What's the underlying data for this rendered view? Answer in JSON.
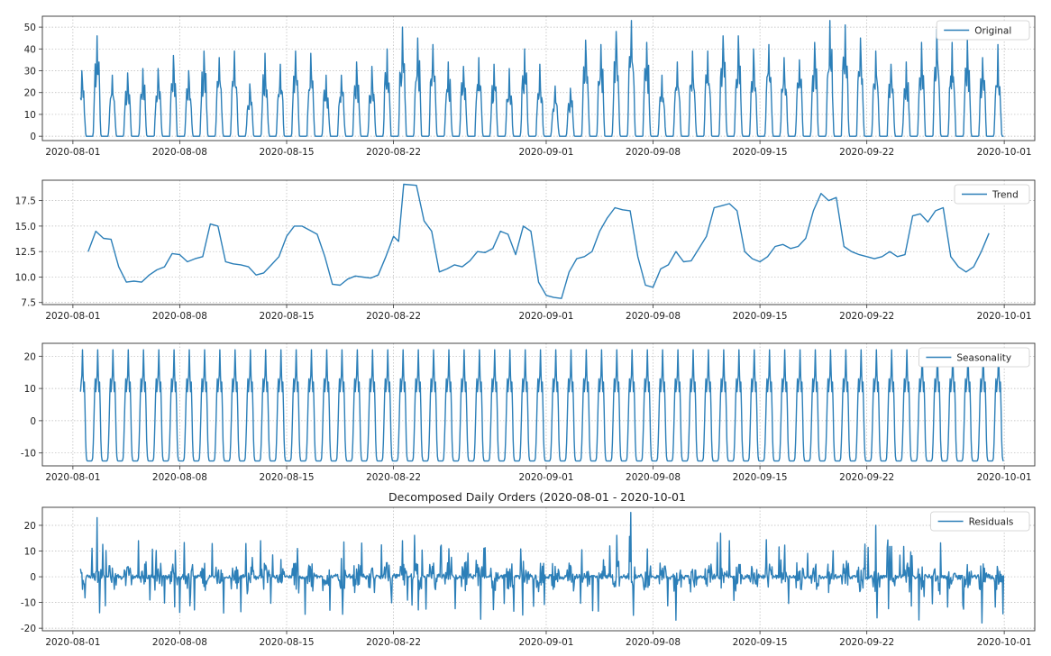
{
  "figure": {
    "title": "Decomposed Daily Orders (2020-08-01 - 2020-10-01",
    "line_color": "#2c7fb8"
  },
  "chart_data": [
    {
      "type": "line",
      "title": "",
      "xlabel": "",
      "ylabel": "",
      "x_range": [
        "2020-07-30",
        "2020-10-03"
      ],
      "ylim": [
        -2,
        55
      ],
      "yticks": [
        0,
        10,
        20,
        30,
        40,
        50
      ],
      "ytick_labels": [
        "0",
        "10",
        "20",
        "30",
        "40",
        "50"
      ],
      "xticks": [
        "2020-08-01",
        "2020-08-08",
        "2020-08-15",
        "2020-08-22",
        "2020-09-01",
        "2020-09-08",
        "2020-09-15",
        "2020-09-22",
        "2020-10-01"
      ],
      "grid": true,
      "legend_position": "top-right",
      "series": [
        {
          "name": "Original",
          "pattern": "hourly counts with a daily cycle: 0 overnight, peaks of ~30-50 during the day",
          "x_start": "2020-08-01 12:00",
          "x_end": "2020-09-30 23:00",
          "daily_peaks": [
            30,
            46,
            28,
            29,
            31,
            31,
            37,
            30,
            39,
            36,
            39,
            24,
            38,
            33,
            39,
            38,
            28,
            28,
            34,
            32,
            40,
            50,
            45,
            42,
            34,
            32,
            36,
            33,
            31,
            40,
            33,
            23,
            22,
            44,
            42,
            48,
            53,
            43,
            28,
            34,
            39,
            39,
            46,
            46,
            40,
            42,
            36,
            35,
            43,
            53,
            51,
            45,
            39,
            33,
            34,
            43,
            49,
            43,
            45,
            36,
            42
          ]
        }
      ]
    },
    {
      "type": "line",
      "title": "",
      "xlabel": "",
      "ylabel": "",
      "x_range": [
        "2020-07-30",
        "2020-10-03"
      ],
      "ylim": [
        7.3,
        19.5
      ],
      "yticks": [
        7.5,
        10.0,
        12.5,
        15.0,
        17.5
      ],
      "ytick_labels": [
        "7.5",
        "10.0",
        "12.5",
        "15.0",
        "17.5"
      ],
      "xticks": [
        "2020-08-01",
        "2020-08-08",
        "2020-08-15",
        "2020-08-22",
        "2020-09-01",
        "2020-09-08",
        "2020-09-15",
        "2020-09-22",
        "2020-10-01"
      ],
      "grid": true,
      "legend_position": "top-right",
      "series": [
        {
          "name": "Trend",
          "points": [
            [
              "2020-08-02 00:00",
              12.5
            ],
            [
              "2020-08-02 12:00",
              14.5
            ],
            [
              "2020-08-03 00:00",
              13.8
            ],
            [
              "2020-08-03 12:00",
              13.7
            ],
            [
              "2020-08-04 00:00",
              11.0
            ],
            [
              "2020-08-04 12:00",
              9.5
            ],
            [
              "2020-08-05 00:00",
              9.6
            ],
            [
              "2020-08-05 12:00",
              9.5
            ],
            [
              "2020-08-06 00:00",
              10.2
            ],
            [
              "2020-08-06 12:00",
              10.7
            ],
            [
              "2020-08-07 00:00",
              11.0
            ],
            [
              "2020-08-07 12:00",
              12.3
            ],
            [
              "2020-08-08 00:00",
              12.2
            ],
            [
              "2020-08-08 12:00",
              11.5
            ],
            [
              "2020-08-09 00:00",
              11.8
            ],
            [
              "2020-08-09 12:00",
              12.0
            ],
            [
              "2020-08-10 00:00",
              15.2
            ],
            [
              "2020-08-10 12:00",
              15.0
            ],
            [
              "2020-08-11 00:00",
              11.5
            ],
            [
              "2020-08-11 12:00",
              11.3
            ],
            [
              "2020-08-12 00:00",
              11.2
            ],
            [
              "2020-08-12 12:00",
              11.0
            ],
            [
              "2020-08-13 00:00",
              10.2
            ],
            [
              "2020-08-13 12:00",
              10.4
            ],
            [
              "2020-08-14 00:00",
              11.2
            ],
            [
              "2020-08-14 12:00",
              12.0
            ],
            [
              "2020-08-15 00:00",
              14.0
            ],
            [
              "2020-08-15 12:00",
              15.0
            ],
            [
              "2020-08-16 00:00",
              15.0
            ],
            [
              "2020-08-16 12:00",
              14.6
            ],
            [
              "2020-08-17 00:00",
              14.2
            ],
            [
              "2020-08-17 12:00",
              12.0
            ],
            [
              "2020-08-18 00:00",
              9.3
            ],
            [
              "2020-08-18 12:00",
              9.2
            ],
            [
              "2020-08-19 00:00",
              9.8
            ],
            [
              "2020-08-19 12:00",
              10.1
            ],
            [
              "2020-08-20 00:00",
              10.0
            ],
            [
              "2020-08-20 12:00",
              9.9
            ],
            [
              "2020-08-21 00:00",
              10.2
            ],
            [
              "2020-08-21 12:00",
              12.0
            ],
            [
              "2020-08-22 00:00",
              14.0
            ],
            [
              "2020-08-22 08:00",
              13.5
            ],
            [
              "2020-08-22 16:00",
              19.1
            ],
            [
              "2020-08-23 12:00",
              19.0
            ],
            [
              "2020-08-24 00:00",
              15.5
            ],
            [
              "2020-08-24 12:00",
              14.5
            ],
            [
              "2020-08-25 00:00",
              10.5
            ],
            [
              "2020-08-25 12:00",
              10.8
            ],
            [
              "2020-08-26 00:00",
              11.2
            ],
            [
              "2020-08-26 12:00",
              11.0
            ],
            [
              "2020-08-27 00:00",
              11.6
            ],
            [
              "2020-08-27 12:00",
              12.5
            ],
            [
              "2020-08-28 00:00",
              12.4
            ],
            [
              "2020-08-28 12:00",
              12.8
            ],
            [
              "2020-08-29 00:00",
              14.5
            ],
            [
              "2020-08-29 12:00",
              14.2
            ],
            [
              "2020-08-30 00:00",
              12.2
            ],
            [
              "2020-08-30 12:00",
              15.0
            ],
            [
              "2020-08-31 00:00",
              14.5
            ],
            [
              "2020-08-31 12:00",
              9.5
            ],
            [
              "2020-09-01 00:00",
              8.2
            ],
            [
              "2020-09-01 12:00",
              8.0
            ],
            [
              "2020-09-02 00:00",
              7.9
            ],
            [
              "2020-09-02 12:00",
              10.5
            ],
            [
              "2020-09-03 00:00",
              11.8
            ],
            [
              "2020-09-03 12:00",
              12.0
            ],
            [
              "2020-09-04 00:00",
              12.5
            ],
            [
              "2020-09-04 12:00",
              14.5
            ],
            [
              "2020-09-05 00:00",
              15.8
            ],
            [
              "2020-09-05 12:00",
              16.8
            ],
            [
              "2020-09-06 00:00",
              16.6
            ],
            [
              "2020-09-06 12:00",
              16.5
            ],
            [
              "2020-09-07 00:00",
              12.0
            ],
            [
              "2020-09-07 12:00",
              9.2
            ],
            [
              "2020-09-08 00:00",
              9.0
            ],
            [
              "2020-09-08 12:00",
              10.8
            ],
            [
              "2020-09-09 00:00",
              11.2
            ],
            [
              "2020-09-09 12:00",
              12.5
            ],
            [
              "2020-09-10 00:00",
              11.5
            ],
            [
              "2020-09-10 12:00",
              11.6
            ],
            [
              "2020-09-11 00:00",
              12.8
            ],
            [
              "2020-09-11 12:00",
              14.0
            ],
            [
              "2020-09-12 00:00",
              16.8
            ],
            [
              "2020-09-12 12:00",
              17.0
            ],
            [
              "2020-09-13 00:00",
              17.2
            ],
            [
              "2020-09-13 12:00",
              16.5
            ],
            [
              "2020-09-14 00:00",
              12.5
            ],
            [
              "2020-09-14 12:00",
              11.8
            ],
            [
              "2020-09-15 00:00",
              11.5
            ],
            [
              "2020-09-15 12:00",
              12.0
            ],
            [
              "2020-09-16 00:00",
              13.0
            ],
            [
              "2020-09-16 12:00",
              13.2
            ],
            [
              "2020-09-17 00:00",
              12.8
            ],
            [
              "2020-09-17 12:00",
              13.0
            ],
            [
              "2020-09-18 00:00",
              13.8
            ],
            [
              "2020-09-18 12:00",
              16.5
            ],
            [
              "2020-09-19 00:00",
              18.2
            ],
            [
              "2020-09-19 12:00",
              17.5
            ],
            [
              "2020-09-20 00:00",
              17.8
            ],
            [
              "2020-09-20 12:00",
              13.0
            ],
            [
              "2020-09-21 00:00",
              12.5
            ],
            [
              "2020-09-21 12:00",
              12.2
            ],
            [
              "2020-09-22 00:00",
              12.0
            ],
            [
              "2020-09-22 12:00",
              11.8
            ],
            [
              "2020-09-23 00:00",
              12.0
            ],
            [
              "2020-09-23 12:00",
              12.5
            ],
            [
              "2020-09-24 00:00",
              12.0
            ],
            [
              "2020-09-24 12:00",
              12.2
            ],
            [
              "2020-09-25 00:00",
              16.0
            ],
            [
              "2020-09-25 12:00",
              16.2
            ],
            [
              "2020-09-26 00:00",
              15.4
            ],
            [
              "2020-09-26 12:00",
              16.5
            ],
            [
              "2020-09-27 00:00",
              16.8
            ],
            [
              "2020-09-27 12:00",
              12.0
            ],
            [
              "2020-09-28 00:00",
              11.0
            ],
            [
              "2020-09-28 12:00",
              10.5
            ],
            [
              "2020-09-29 00:00",
              11.0
            ],
            [
              "2020-09-29 12:00",
              12.5
            ],
            [
              "2020-09-30 00:00",
              14.3
            ]
          ]
        }
      ]
    },
    {
      "type": "line",
      "title": "",
      "xlabel": "",
      "ylabel": "",
      "x_range": [
        "2020-07-30",
        "2020-10-03"
      ],
      "ylim": [
        -14,
        24
      ],
      "yticks": [
        -10,
        0,
        10,
        20
      ],
      "ytick_labels": [
        "-10",
        "0",
        "10",
        "20"
      ],
      "xticks": [
        "2020-08-01",
        "2020-08-08",
        "2020-08-15",
        "2020-08-22",
        "2020-09-01",
        "2020-09-08",
        "2020-09-15",
        "2020-09-22",
        "2020-10-01"
      ],
      "grid": true,
      "legend_position": "top-right",
      "series": [
        {
          "name": "Seasonality",
          "pattern": "daily cycle repeated each day: about -12.5 overnight, rising to ~13, dip to ~9, peak ~22",
          "x_start": "2020-08-01 12:00",
          "x_end": "2020-09-30 23:00",
          "min": -12.5,
          "max": 22
        }
      ]
    },
    {
      "type": "line",
      "title": "",
      "xlabel": "",
      "ylabel": "",
      "x_range": [
        "2020-07-30",
        "2020-10-03"
      ],
      "ylim": [
        -21,
        27
      ],
      "yticks": [
        -20,
        -10,
        0,
        10,
        20
      ],
      "ytick_labels": [
        "-20",
        "-10",
        "0",
        "10",
        "20"
      ],
      "xticks": [
        "2020-08-01",
        "2020-08-08",
        "2020-08-15",
        "2020-08-22",
        "2020-09-01",
        "2020-09-08",
        "2020-09-15",
        "2020-09-22",
        "2020-10-01"
      ],
      "grid": true,
      "legend_position": "top-right",
      "series": [
        {
          "name": "Residuals",
          "pattern": "noisy residuals centred on 0, mostly within -15 to 15",
          "x_start": "2020-08-01 12:00",
          "x_end": "2020-09-30 23:00",
          "spikes": [
            [
              "2020-08-02 14:00",
              23
            ],
            [
              "2020-08-02 18:00",
              -14
            ],
            [
              "2020-08-17 20:00",
              -13
            ],
            [
              "2020-08-22 14:00",
              14
            ],
            [
              "2020-09-06 13:00",
              25
            ],
            [
              "2020-09-06 17:00",
              -15
            ],
            [
              "2020-09-22 14:00",
              20
            ],
            [
              "2020-09-29 13:00",
              -18
            ]
          ]
        }
      ]
    }
  ]
}
